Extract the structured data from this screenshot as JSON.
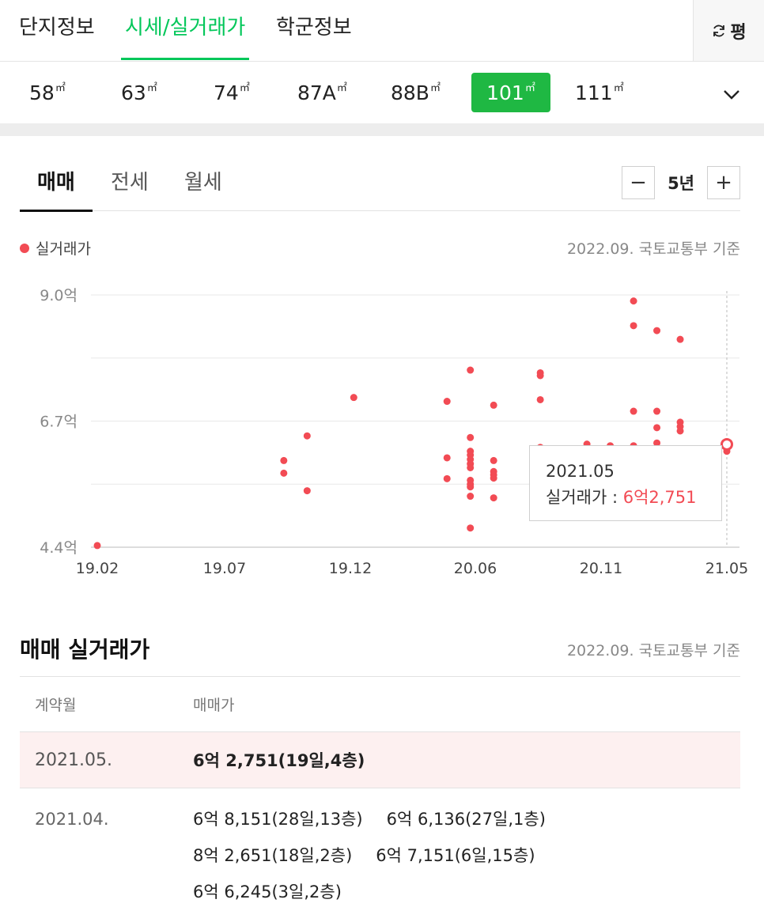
{
  "top_tabs": [
    "단지정보",
    "시세/실거래가",
    "학군정보"
  ],
  "unit_toggle": "평",
  "areas": [
    {
      "value": "58",
      "unit": "㎡"
    },
    {
      "value": "63",
      "unit": "㎡"
    },
    {
      "value": "74",
      "unit": "㎡"
    },
    {
      "value": "87A",
      "unit": "㎡"
    },
    {
      "value": "88B",
      "unit": "㎡"
    },
    {
      "value": "101",
      "unit": "㎡"
    },
    {
      "value": "111",
      "unit": "㎡"
    }
  ],
  "deal_tabs": [
    "매매",
    "전세",
    "월세"
  ],
  "period": {
    "label": "5년",
    "minus": "−",
    "plus": "+"
  },
  "legend_label": "실거래가",
  "source_label": "2022.09. 국토교통부 기준",
  "tooltip": {
    "date": "2021.05",
    "label": "실거래가 : ",
    "value": "6억2,751"
  },
  "chart_data": {
    "type": "scatter",
    "series": [
      {
        "name": "실거래가",
        "color": "#f24b54"
      }
    ],
    "y_ticks": [
      "9.0억",
      "6.7억",
      "4.4억"
    ],
    "x_ticks": [
      "19.02",
      "19.07",
      "19.12",
      "20.06",
      "20.11",
      "21.05"
    ],
    "ylim": [
      4.4,
      9.0
    ],
    "x_range_months": [
      "2019-02",
      "2021-05"
    ],
    "points": [
      [
        "2019-02",
        4.43
      ],
      [
        "2019-10",
        5.98
      ],
      [
        "2019-10",
        5.75
      ],
      [
        "2019-11",
        6.43
      ],
      [
        "2019-11",
        5.43
      ],
      [
        "2020-01",
        7.13
      ],
      [
        "2020-05",
        7.06
      ],
      [
        "2020-05",
        6.03
      ],
      [
        "2020-05",
        5.65
      ],
      [
        "2020-06",
        7.63
      ],
      [
        "2020-06",
        6.4
      ],
      [
        "2020-06",
        6.15
      ],
      [
        "2020-06",
        6.08
      ],
      [
        "2020-06",
        6.0
      ],
      [
        "2020-06",
        5.92
      ],
      [
        "2020-06",
        5.85
      ],
      [
        "2020-06",
        5.62
      ],
      [
        "2020-06",
        5.55
      ],
      [
        "2020-06",
        5.5
      ],
      [
        "2020-06",
        5.33
      ],
      [
        "2020-06",
        4.75
      ],
      [
        "2020-07",
        6.99
      ],
      [
        "2020-07",
        5.98
      ],
      [
        "2020-07",
        5.78
      ],
      [
        "2020-07",
        5.72
      ],
      [
        "2020-07",
        5.66
      ],
      [
        "2020-07",
        5.3
      ],
      [
        "2020-09",
        7.58
      ],
      [
        "2020-09",
        7.53
      ],
      [
        "2020-09",
        7.09
      ],
      [
        "2020-09",
        6.22
      ],
      [
        "2020-11",
        6.28
      ],
      [
        "2020-12",
        6.25
      ],
      [
        "2021-01",
        8.89
      ],
      [
        "2021-01",
        8.44
      ],
      [
        "2021-01",
        6.88
      ],
      [
        "2021-01",
        6.25
      ],
      [
        "2021-02",
        8.35
      ],
      [
        "2021-02",
        6.88
      ],
      [
        "2021-02",
        6.58
      ],
      [
        "2021-02",
        6.3
      ],
      [
        "2021-03",
        8.19
      ],
      [
        "2021-03",
        6.68
      ],
      [
        "2021-03",
        6.6
      ],
      [
        "2021-03",
        6.52
      ],
      [
        "2021-05",
        6.28
      ],
      [
        "2021-05",
        6.15
      ]
    ],
    "highlight": [
      "2021-05",
      6.2751
    ]
  },
  "table": {
    "title": "매매 실거래가",
    "source_label": "2022.09. 국토교통부 기준",
    "headers": [
      "계약월",
      "매매가"
    ],
    "rows": [
      {
        "month": "2021.05.",
        "deals": [
          "6억 2,751(19일,4층)"
        ]
      },
      {
        "month": "2021.04.",
        "deals": [
          "6억 8,151(28일,13층)",
          "6억 6,136(27일,1층)",
          "8억 2,651(18일,2층)",
          "6억 7,151(6일,15층)",
          "6억 6,245(3일,2층)"
        ]
      }
    ]
  }
}
